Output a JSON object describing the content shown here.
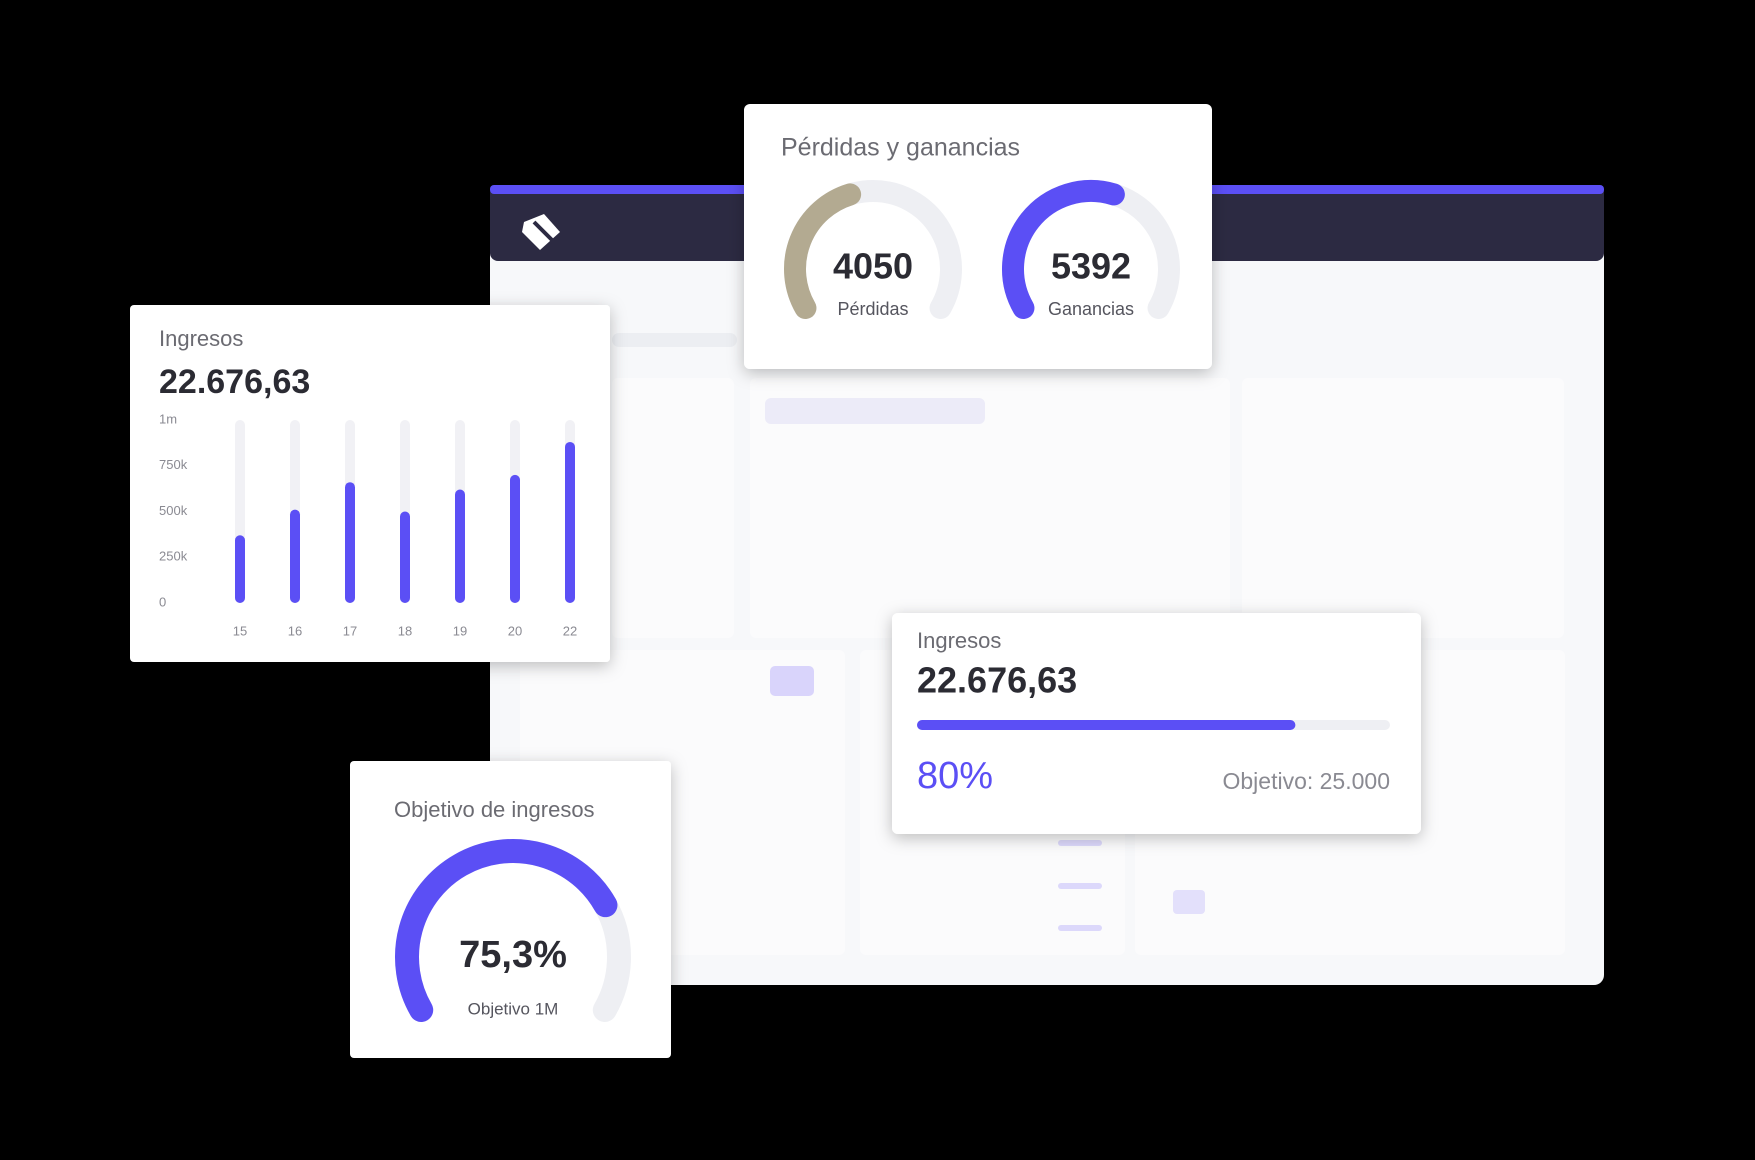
{
  "chart_data": [
    {
      "type": "bar",
      "title": "Ingresos",
      "subtitle": "22.676,63",
      "categories": [
        "15",
        "16",
        "17",
        "18",
        "19",
        "20",
        "22"
      ],
      "values": [
        370000,
        510000,
        660000,
        500000,
        620000,
        700000,
        880000
      ],
      "color": "#5b4ff5",
      "track_color": "#f1f1f5",
      "ylim": [
        0,
        1000000
      ],
      "yticks": [
        0,
        {
          "value": 250000,
          "label": "250k"
        },
        {
          "value": 500000,
          "label": "500k"
        },
        {
          "value": 750000,
          "label": "750k"
        },
        {
          "value": 1000000,
          "label": "1m"
        }
      ]
    },
    {
      "type": "gauge",
      "title": "Pérdidas y ganancias",
      "categories": [
        "Pérdidas",
        "Ganancias"
      ],
      "values": [
        4050,
        5392
      ],
      "colors": [
        "#b3aa91",
        "#5b4ff5"
      ],
      "track_color": "#eeeff3"
    },
    {
      "type": "progress",
      "title": "Ingresos",
      "subtitle": "22.676,63",
      "values": [
        80
      ],
      "value_labels": [
        "80%"
      ],
      "ylim": [
        0,
        100
      ],
      "note": "Objetivo: 25.000",
      "color": "#5b4ff5",
      "track_color": "#eeeff3"
    },
    {
      "type": "gauge",
      "title": "Objetivo de ingresos",
      "categories": [
        "Objetivo 1M"
      ],
      "values": [
        75.3
      ],
      "value_labels": [
        "75,3%"
      ],
      "ylim": [
        0,
        100
      ],
      "colors": [
        "#5b4ff5"
      ],
      "track_color": "#eeeff3"
    }
  ]
}
